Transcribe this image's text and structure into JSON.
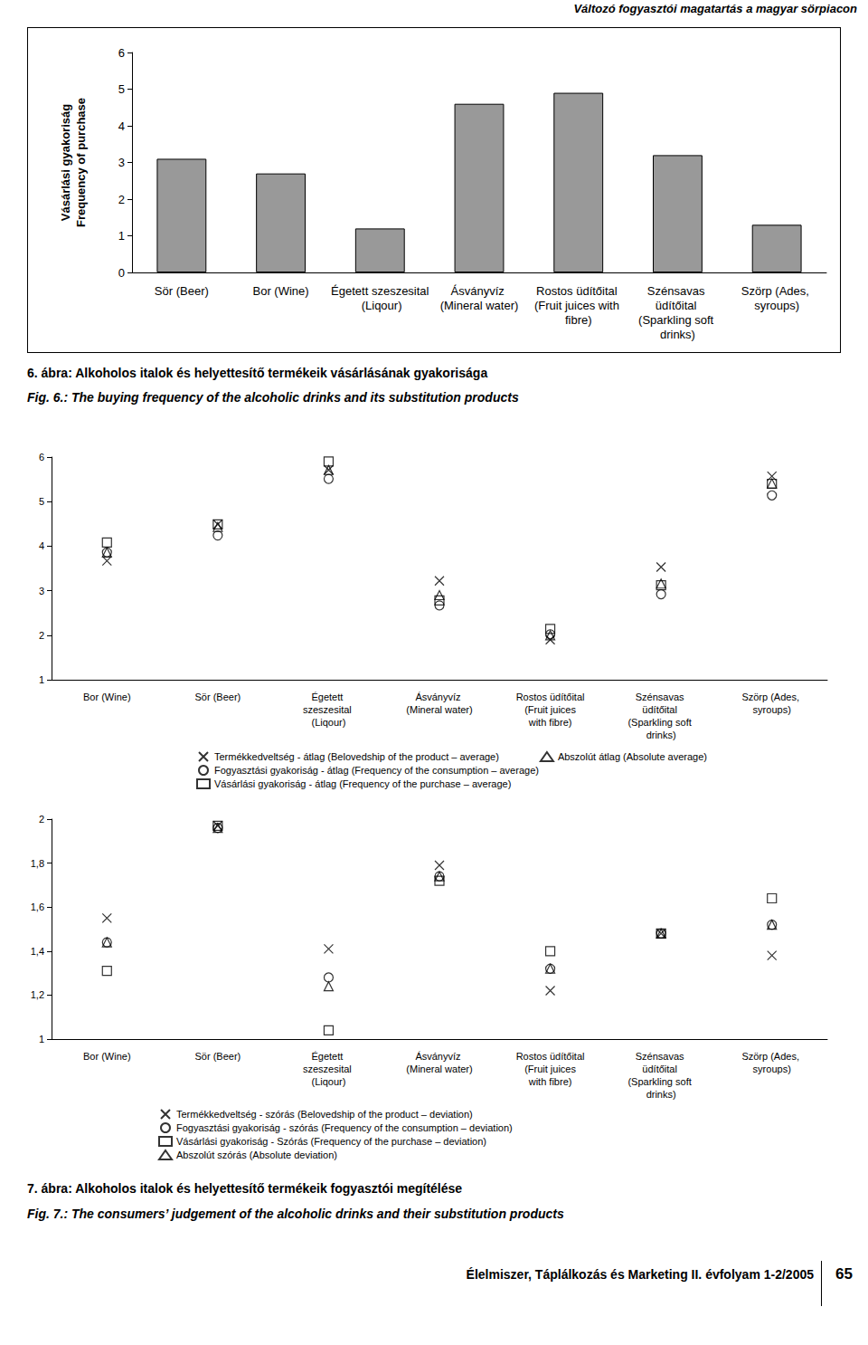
{
  "header": "Változó fogyasztói magatartás a magyar sörpiacon",
  "chart_data": [
    {
      "type": "bar",
      "ylabel": "Vásárlási gyakoriság\nFrequency of purchase",
      "categories": [
        "Sör (Beer)",
        "Bor (Wine)",
        "Égetett szeszesital (Liqour)",
        "Ásványvíz (Mineral water)",
        "Rostos üdítőital (Fruit juices with fibre)",
        "Szénsavas üdítőital (Sparkling soft drinks)",
        "Szörp (Ades, syroups)"
      ],
      "values": [
        3.1,
        2.7,
        1.2,
        4.6,
        4.9,
        3.2,
        1.3
      ],
      "color": "#999999",
      "ylim": [
        0,
        6
      ],
      "yticks": [
        0,
        1,
        2,
        3,
        4,
        5,
        6
      ],
      "grid": false
    },
    {
      "type": "scatter",
      "categories": [
        "Bor (Wine)",
        "Sör (Beer)",
        "Égetett szeszesital (Liqour)",
        "Ásványvíz (Mineral water)",
        "Rostos üdítőital (Fruit juices with fibre)",
        "Szénsavas üdítőital (Sparkling soft drinks)",
        "Szörp (Ades, syroups)"
      ],
      "series": [
        {
          "name": "Termékkedveltség - átlag (Belovedship of the product – average)",
          "marker": "x",
          "values": [
            3.67,
            4.49,
            5.71,
            3.22,
            1.9,
            3.53,
            5.57
          ]
        },
        {
          "name": "Fogyasztási gyakoriság - átlag (Frequency of the consumption – average)",
          "marker": "circle",
          "values": [
            3.86,
            4.24,
            5.51,
            2.67,
            2.02,
            2.92,
            5.14
          ]
        },
        {
          "name": "Vásárlási gyakoriság - átlag (Frequency of the purchase – average)",
          "marker": "square",
          "values": [
            4.08,
            4.49,
            5.9,
            2.78,
            2.14,
            3.12,
            5.4
          ]
        },
        {
          "name": "Abszolút átlag (Absolute average)",
          "marker": "triangle",
          "values": [
            3.86,
            4.43,
            5.71,
            2.9,
            2.0,
            3.16,
            5.41
          ]
        }
      ],
      "color": "#000000",
      "ylim": [
        1,
        6
      ],
      "yticks": [
        1,
        2,
        3,
        4,
        5,
        6
      ],
      "grid": false,
      "legend": "bottom"
    },
    {
      "type": "scatter",
      "categories": [
        "Bor (Wine)",
        "Sör (Beer)",
        "Égetett szeszesital (Liqour)",
        "Ásványvíz (Mineral water)",
        "Rostos üdítőital (Fruit juices with fibre)",
        "Szénsavas üdítőital (Sparkling soft drinks)",
        "Szörp (Ades, syroups)"
      ],
      "series": [
        {
          "name": "Termékkedveltség - szórás (Belovedship of the product – deviation)",
          "marker": "x",
          "values": [
            1.55,
            1.97,
            1.41,
            1.79,
            1.22,
            1.48,
            1.38
          ]
        },
        {
          "name": "Fogyasztási gyakoriság - szórás (Frequency of the consumption – deviation)",
          "marker": "circle",
          "values": [
            1.44,
            1.96,
            1.28,
            1.74,
            1.32,
            1.48,
            1.52
          ]
        },
        {
          "name": "Vásárlási gyakoriság - Szórás (Frequency of the purchase – deviation)",
          "marker": "square",
          "values": [
            1.31,
            1.97,
            1.04,
            1.72,
            1.4,
            1.48,
            1.64
          ]
        },
        {
          "name": "Abszolút szórás (Absolute deviation)",
          "marker": "triangle",
          "values": [
            1.44,
            1.96,
            1.24,
            1.74,
            1.32,
            1.48,
            1.52
          ]
        }
      ],
      "color": "#000000",
      "ylim": [
        1,
        2
      ],
      "yticks": [
        1,
        {
          "value": 1.2,
          "label": "1,2"
        },
        {
          "value": 1.4,
          "label": "1,4"
        },
        {
          "value": 1.6,
          "label": "1,6"
        },
        {
          "value": 1.8,
          "label": "1,8"
        },
        2
      ],
      "grid": false,
      "legend": "bottom"
    }
  ],
  "captions": [
    [
      "6. ábra: Alkoholos italok és helyettesítő termékeik vásárlásának gyakorisága",
      "Fig. 6.: The buying frequency of the alcoholic drinks and its substitution products"
    ],
    [
      "7. ábra: Alkoholos italok és helyettesítő termékeik fogyasztói megítélése",
      "Fig. 7.: The consumers’ judgement of the alcoholic drinks and their substitution products"
    ]
  ],
  "footer": {
    "journal": "Élelmiszer, Táplálkozás és Marketing II. évfolyam 1-2/2005",
    "page": "65"
  }
}
